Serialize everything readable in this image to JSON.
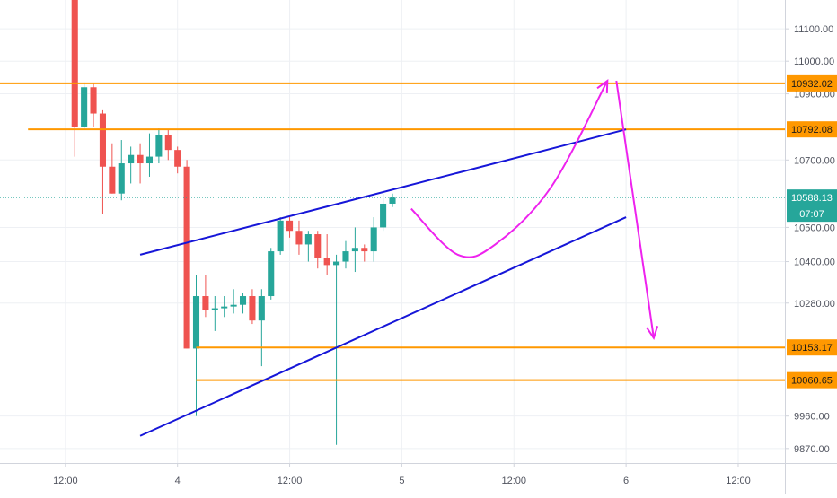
{
  "colors": {
    "up": "#26a69a",
    "down": "#ef5350",
    "grid": "#eef0f4",
    "axis_text": "#50535e",
    "axis_border": "#d1d4dc",
    "level_line": "#ff9800",
    "price_line": "#26a69a",
    "price_badge": "#26a69a",
    "channel": "#1616d8",
    "path": "#ee22ee"
  },
  "chart_data": {
    "type": "candlestick",
    "title": "",
    "xlabel": "",
    "ylabel": "",
    "y_scale": "log",
    "ylim": [
      9830,
      11190
    ],
    "xlim": [
      "2020-09-03T05:00",
      "2020-09-06T17:00"
    ],
    "grid": true,
    "y_ticks": [
      "11100.00",
      "11000.00",
      "10900.00",
      "10700.00",
      "10500.00",
      "10400.00",
      "10280.00",
      "9960.00",
      "9870.00"
    ],
    "x_ticks": [
      {
        "t": "2020-09-03T12:00",
        "label": "12:00"
      },
      {
        "t": "2020-09-04T00:00",
        "label": "4"
      },
      {
        "t": "2020-09-04T12:00",
        "label": "12:00"
      },
      {
        "t": "2020-09-05T00:00",
        "label": "5"
      },
      {
        "t": "2020-09-05T12:00",
        "label": "12:00"
      },
      {
        "t": "2020-09-06T00:00",
        "label": "6"
      },
      {
        "t": "2020-09-06T12:00",
        "label": "12:00"
      }
    ],
    "candle_start": "2020-09-03T13:00",
    "candle_interval_hours": 1,
    "candles": [
      {
        "o": 11190,
        "h": 11190,
        "l": 10710,
        "c": 10800
      },
      {
        "o": 10800,
        "h": 10935,
        "l": 10790,
        "c": 10920
      },
      {
        "o": 10920,
        "h": 10930,
        "l": 10800,
        "c": 10840
      },
      {
        "o": 10840,
        "h": 10850,
        "l": 10540,
        "c": 10680
      },
      {
        "o": 10680,
        "h": 10750,
        "l": 10600,
        "c": 10600
      },
      {
        "o": 10600,
        "h": 10760,
        "l": 10580,
        "c": 10690
      },
      {
        "o": 10690,
        "h": 10740,
        "l": 10630,
        "c": 10715
      },
      {
        "o": 10715,
        "h": 10750,
        "l": 10630,
        "c": 10690
      },
      {
        "o": 10690,
        "h": 10780,
        "l": 10650,
        "c": 10710
      },
      {
        "o": 10710,
        "h": 10795,
        "l": 10690,
        "c": 10775
      },
      {
        "o": 10775,
        "h": 10790,
        "l": 10700,
        "c": 10730
      },
      {
        "o": 10730,
        "h": 10740,
        "l": 10660,
        "c": 10680
      },
      {
        "o": 10680,
        "h": 10700,
        "l": 10150,
        "c": 10150
      },
      {
        "o": 10150,
        "h": 10360,
        "l": 9960,
        "c": 10300
      },
      {
        "o": 10300,
        "h": 10360,
        "l": 10240,
        "c": 10260
      },
      {
        "o": 10260,
        "h": 10300,
        "l": 10200,
        "c": 10265
      },
      {
        "o": 10265,
        "h": 10300,
        "l": 10240,
        "c": 10270
      },
      {
        "o": 10270,
        "h": 10320,
        "l": 10250,
        "c": 10275
      },
      {
        "o": 10275,
        "h": 10310,
        "l": 10250,
        "c": 10300
      },
      {
        "o": 10300,
        "h": 10320,
        "l": 10220,
        "c": 10230
      },
      {
        "o": 10230,
        "h": 10320,
        "l": 10100,
        "c": 10300
      },
      {
        "o": 10300,
        "h": 10440,
        "l": 10290,
        "c": 10430
      },
      {
        "o": 10430,
        "h": 10530,
        "l": 10420,
        "c": 10520
      },
      {
        "o": 10520,
        "h": 10530,
        "l": 10470,
        "c": 10490
      },
      {
        "o": 10490,
        "h": 10520,
        "l": 10420,
        "c": 10450
      },
      {
        "o": 10450,
        "h": 10490,
        "l": 10400,
        "c": 10480
      },
      {
        "o": 10480,
        "h": 10490,
        "l": 10380,
        "c": 10410
      },
      {
        "o": 10410,
        "h": 10480,
        "l": 10360,
        "c": 10390
      },
      {
        "o": 10390,
        "h": 10420,
        "l": 9880,
        "c": 10400
      },
      {
        "o": 10400,
        "h": 10460,
        "l": 10380,
        "c": 10430
      },
      {
        "o": 10430,
        "h": 10500,
        "l": 10370,
        "c": 10440
      },
      {
        "o": 10440,
        "h": 10450,
        "l": 10400,
        "c": 10430
      },
      {
        "o": 10430,
        "h": 10530,
        "l": 10400,
        "c": 10500
      },
      {
        "o": 10500,
        "h": 10600,
        "l": 10490,
        "c": 10570
      },
      {
        "o": 10570,
        "h": 10600,
        "l": 10560,
        "c": 10588
      }
    ],
    "levels": [
      {
        "price": 10932.02,
        "label": "10932.02",
        "from": "2020-09-03T03:00"
      },
      {
        "price": 10792.08,
        "label": "10792.08",
        "from": "2020-09-03T08:00"
      },
      {
        "price": 10153.17,
        "label": "10153.17",
        "from": "2020-09-04T02:00"
      },
      {
        "price": 10060.65,
        "label": "10060.65",
        "from": "2020-09-04T02:00"
      }
    ],
    "last_price": {
      "price": 10588.13,
      "label": "10588.13",
      "countdown": "07:07"
    },
    "channel_lines": [
      {
        "from": {
          "t": "2020-09-03T20:00",
          "p": 10420
        },
        "to": {
          "t": "2020-09-06T00:00",
          "p": 10792
        }
      },
      {
        "from": {
          "t": "2020-09-03T20:00",
          "p": 9905
        },
        "to": {
          "t": "2020-09-06T00:00",
          "p": 10530
        }
      }
    ],
    "projection_curve": [
      {
        "t": "2020-09-05T01:00",
        "p": 10555
      },
      {
        "t": "2020-09-05T06:00",
        "p": 10420
      },
      {
        "t": "2020-09-05T10:00",
        "p": 10450
      },
      {
        "t": "2020-09-05T16:00",
        "p": 10620
      },
      {
        "t": "2020-09-05T22:00",
        "p": 10940
      }
    ],
    "projection_drop": {
      "from": {
        "t": "2020-09-05T22:00",
        "p": 10940
      },
      "to": {
        "t": "2020-09-06T02:00",
        "p": 10180
      }
    }
  }
}
